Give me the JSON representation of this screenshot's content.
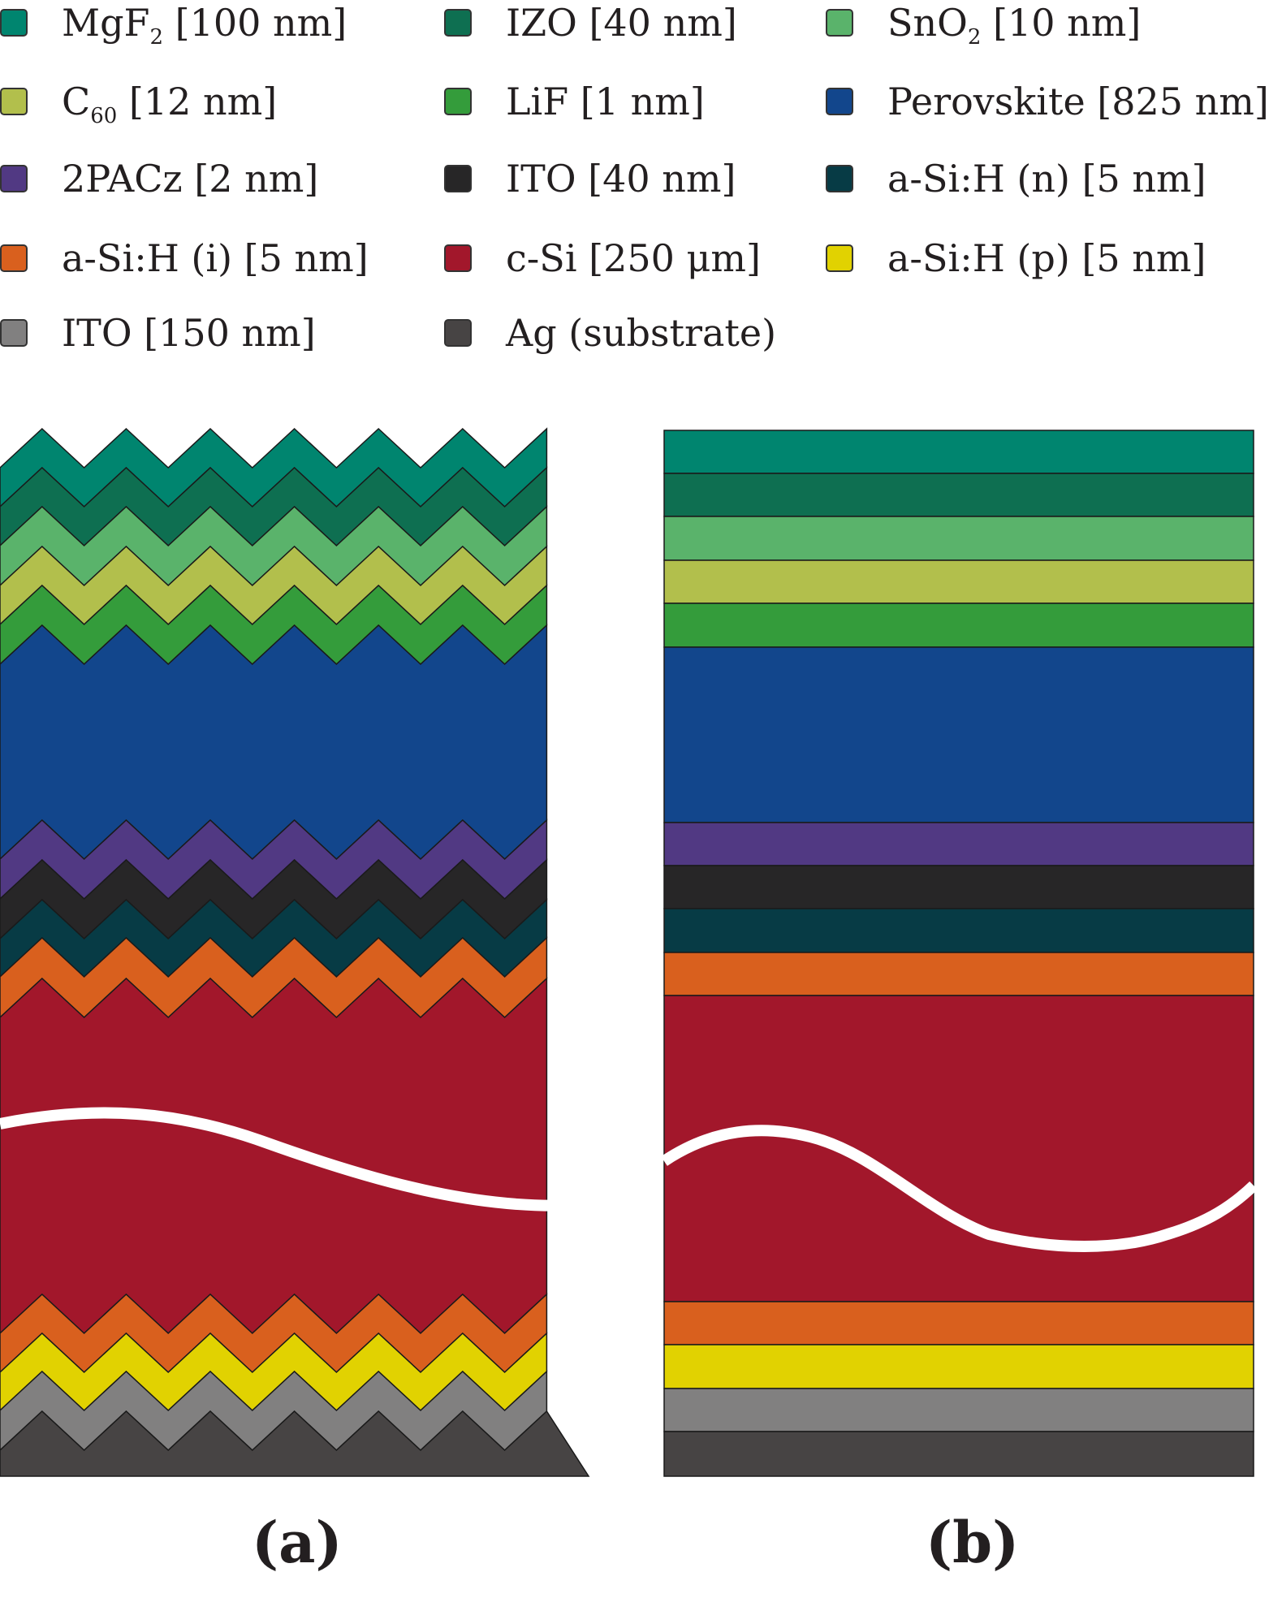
{
  "legend": {
    "items": [
      {
        "id": "mgf2",
        "label_main": "MgF",
        "label_sub": "2",
        "label_rest": " [100 nm]",
        "color": "#00856f"
      },
      {
        "id": "izo",
        "label_main": "IZO [40 nm]",
        "label_sub": "",
        "label_rest": "",
        "color": "#0e6f51"
      },
      {
        "id": "sno2",
        "label_main": "SnO",
        "label_sub": "2",
        "label_rest": " [10 nm]",
        "color": "#5ab36b"
      },
      {
        "id": "c60",
        "label_main": "C",
        "label_sub": "60",
        "label_rest": " [12 nm]",
        "color": "#b2bf4c"
      },
      {
        "id": "lif",
        "label_main": "LiF [1 nm]",
        "label_sub": "",
        "label_rest": "",
        "color": "#349c3b"
      },
      {
        "id": "perovskite",
        "label_main": "Perovskite [825 nm]",
        "label_sub": "",
        "label_rest": "",
        "color": "#12468c"
      },
      {
        "id": "2pacz",
        "label_main": "2PACz [2 nm]",
        "label_sub": "",
        "label_rest": "",
        "color": "#513983"
      },
      {
        "id": "ito40",
        "label_main": "ITO [40 nm]",
        "label_sub": "",
        "label_rest": "",
        "color": "#272627"
      },
      {
        "id": "asih-n",
        "label_main": "a-Si:H (n) [5 nm]",
        "label_sub": "",
        "label_rest": "",
        "color": "#073b45"
      },
      {
        "id": "asih-i",
        "label_main": "a-Si:H (i) [5 nm]",
        "label_sub": "",
        "label_rest": "",
        "color": "#d9601e"
      },
      {
        "id": "csi",
        "label_main": "c-Si [250 μm]",
        "label_sub": "",
        "label_rest": "",
        "color": "#a2172b"
      },
      {
        "id": "asih-p",
        "label_main": "a-Si:H (p) [5 nm]",
        "label_sub": "",
        "label_rest": "",
        "color": "#e1d201"
      },
      {
        "id": "ito150",
        "label_main": "ITO [150 nm]",
        "label_sub": "",
        "label_rest": "",
        "color": "#818080"
      },
      {
        "id": "ag",
        "label_main": "Ag (substrate)",
        "label_sub": "",
        "label_rest": "",
        "color": "#474444"
      }
    ]
  },
  "stack_order": [
    "mgf2",
    "izo",
    "sno2",
    "c60",
    "lif",
    "perovskite",
    "2pacz",
    "ito40",
    "asih-n",
    "asih-i",
    "csi",
    "asih-i",
    "asih-p",
    "ito150",
    "ag"
  ],
  "break_line_color": "#ffffff",
  "panels": {
    "a": "(a)",
    "b": "(b)"
  }
}
